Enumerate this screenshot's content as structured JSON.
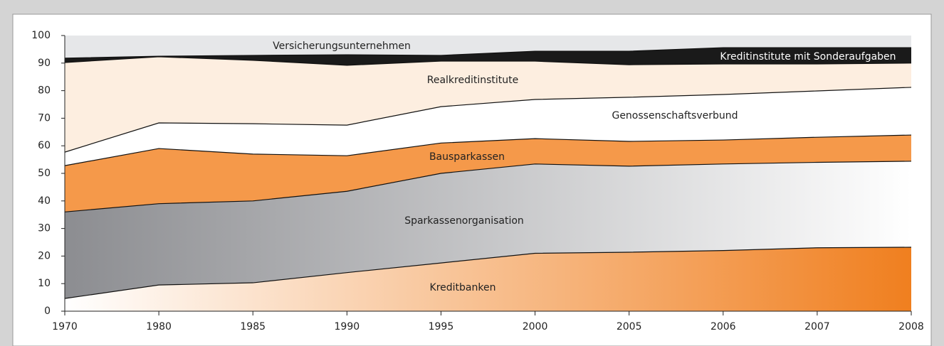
{
  "chart_data": {
    "type": "stacked_area",
    "categories": [
      "1970",
      "1980",
      "1985",
      "1990",
      "1995",
      "2000",
      "2005",
      "2006",
      "2007",
      "2008"
    ],
    "series": [
      {
        "name": "Kreditbanken",
        "color": "#f07f1f",
        "gradient": [
          "#ffffff",
          "#f07f1f"
        ],
        "label_color": "#222222",
        "values": [
          4.6,
          9.5,
          10.3,
          14,
          17.5,
          21,
          21.4,
          22,
          23,
          23.2
        ]
      },
      {
        "name": "Sparkassenorganisation",
        "color": "#b4b5b8",
        "gradient": [
          "#8c8d91",
          "#ffffff"
        ],
        "label_color": "#222222",
        "values": [
          31.4,
          29.5,
          29.7,
          29.5,
          32.5,
          32.4,
          31.2,
          31.4,
          31,
          31.2
        ]
      },
      {
        "name": "Bausparkassen",
        "color": "#f5994a",
        "label_color": "#222222",
        "values": [
          16.8,
          20,
          17,
          12.9,
          11,
          9.2,
          9,
          8.7,
          9.1,
          9.5
        ]
      },
      {
        "name": "Genossenschaftsverbund",
        "color": "#ffffff",
        "label_color": "#222222",
        "values": [
          4.9,
          9.3,
          11,
          11.1,
          13.2,
          14.2,
          16,
          16.5,
          16.8,
          17.3
        ]
      },
      {
        "name": "Realkreditinstitute",
        "color": "#fdeee0",
        "label_color": "#222222",
        "values": [
          32.5,
          24,
          23,
          21.7,
          16.5,
          13.9,
          11.8,
          11.1,
          9.8,
          8.8
        ]
      },
      {
        "name": "Kreditinstitute mit Sonderaufgaben",
        "color": "#1a1a1a",
        "label_color": "#ffffff",
        "values": [
          1.6,
          0.2,
          1.8,
          3.8,
          2.1,
          3.6,
          4.9,
          5.9,
          5.9,
          5.6
        ]
      },
      {
        "name": "Versicherungsunternehmen",
        "color": "#e6e7e9",
        "label_color": "#222222",
        "values": [
          8.2,
          7.5,
          7.2,
          7,
          7.2,
          5.7,
          5.7,
          4.4,
          4.4,
          4.4
        ]
      }
    ],
    "ylim": [
      0,
      100
    ],
    "yticks": [
      0,
      10,
      20,
      30,
      40,
      50,
      60,
      70,
      80,
      90,
      100
    ]
  }
}
